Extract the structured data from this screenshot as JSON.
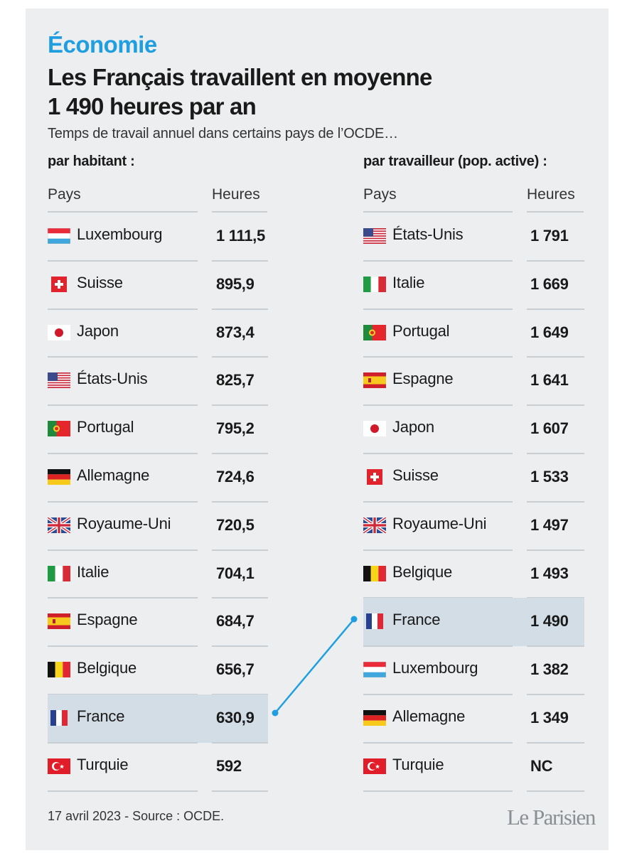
{
  "header": {
    "section": "Économie",
    "title_line1": "Les Français travaillent en moyenne",
    "title_line2": "1 490 heures par an",
    "subtitle": "Temps de travail annuel dans certains pays de l’OCDE…"
  },
  "left_table": {
    "title": "par habitant :",
    "col_country": "Pays",
    "col_hours": "Heures",
    "rows": [
      {
        "flag": "lu",
        "country": "Luxembourg",
        "hours": "1 111,5"
      },
      {
        "flag": "ch",
        "country": "Suisse",
        "hours": "895,9"
      },
      {
        "flag": "jp",
        "country": "Japon",
        "hours": "873,4"
      },
      {
        "flag": "us",
        "country": "États-Unis",
        "hours": "825,7"
      },
      {
        "flag": "pt",
        "country": "Portugal",
        "hours": "795,2"
      },
      {
        "flag": "de",
        "country": "Allemagne",
        "hours": "724,6"
      },
      {
        "flag": "gb",
        "country": "Royaume-Uni",
        "hours": "720,5"
      },
      {
        "flag": "it",
        "country": "Italie",
        "hours": "704,1"
      },
      {
        "flag": "es",
        "country": "Espagne",
        "hours": "684,7"
      },
      {
        "flag": "be",
        "country": "Belgique",
        "hours": "656,7"
      },
      {
        "flag": "fr",
        "country": "France",
        "hours": "630,9",
        "highlight": true
      },
      {
        "flag": "tr",
        "country": "Turquie",
        "hours": "592"
      }
    ]
  },
  "right_table": {
    "title": "par travailleur (pop. active) :",
    "col_country": "Pays",
    "col_hours": "Heures",
    "rows": [
      {
        "flag": "us",
        "country": "États-Unis",
        "hours": "1 791"
      },
      {
        "flag": "it",
        "country": "Italie",
        "hours": "1 669"
      },
      {
        "flag": "pt",
        "country": "Portugal",
        "hours": "1 649"
      },
      {
        "flag": "es",
        "country": "Espagne",
        "hours": "1 641"
      },
      {
        "flag": "jp",
        "country": "Japon",
        "hours": "1 607"
      },
      {
        "flag": "ch",
        "country": "Suisse",
        "hours": "1 533"
      },
      {
        "flag": "gb",
        "country": "Royaume-Uni",
        "hours": "1 497"
      },
      {
        "flag": "be",
        "country": "Belgique",
        "hours": "1 493"
      },
      {
        "flag": "fr",
        "country": "France",
        "hours": "1 490",
        "highlight": true
      },
      {
        "flag": "lu",
        "country": "Luxembourg",
        "hours": "1 382"
      },
      {
        "flag": "de",
        "country": "Allemagne",
        "hours": "1 349"
      },
      {
        "flag": "tr",
        "country": "Turquie",
        "hours": "NC"
      }
    ]
  },
  "footer": {
    "source": "17 avril 2023 - Source : OCDE.",
    "brand": "Le Parisien"
  },
  "colors": {
    "accent": "#1f9ee0",
    "highlight_row": "#d3dde6",
    "background": "#eceef0"
  }
}
